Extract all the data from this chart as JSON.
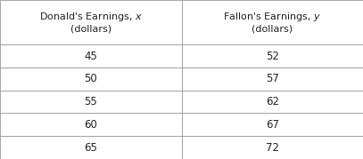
{
  "col1_header": "Donald's Earnings, $x$\n(dollars)",
  "col2_header": "Fallon's Earnings, $y$\n(dollars)",
  "col1_values": [
    "45",
    "50",
    "55",
    "60",
    "65"
  ],
  "col2_values": [
    "52",
    "57",
    "62",
    "67",
    "72"
  ],
  "header_bg": "#ffffff",
  "row_bg": "#ffffff",
  "border_color": "#999999",
  "text_color": "#222222",
  "fig_bg": "#ffffff",
  "header_fontsize": 8.0,
  "data_fontsize": 8.5,
  "fig_width": 4.07,
  "fig_height": 1.79,
  "dpi": 100
}
